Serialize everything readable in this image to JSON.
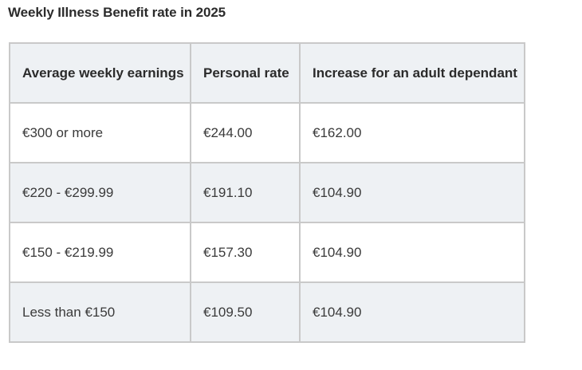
{
  "title": "Weekly Illness Benefit rate in 2025",
  "table": {
    "headers": [
      "Average weekly earnings",
      "Personal rate",
      "Increase for an adult dependant"
    ],
    "rows": [
      [
        "€300 or more",
        "€244.00",
        "€162.00"
      ],
      [
        "€220 - €299.99",
        "€191.10",
        "€104.90"
      ],
      [
        "€150 - €219.99",
        "€157.30",
        "€104.90"
      ],
      [
        "Less than €150",
        "€109.50",
        "€104.90"
      ]
    ]
  },
  "colors": {
    "header_background": "#eef1f4",
    "alt_row_background": "#eef1f4",
    "border": "#c9c9c9",
    "text": "#2b2b2b"
  }
}
